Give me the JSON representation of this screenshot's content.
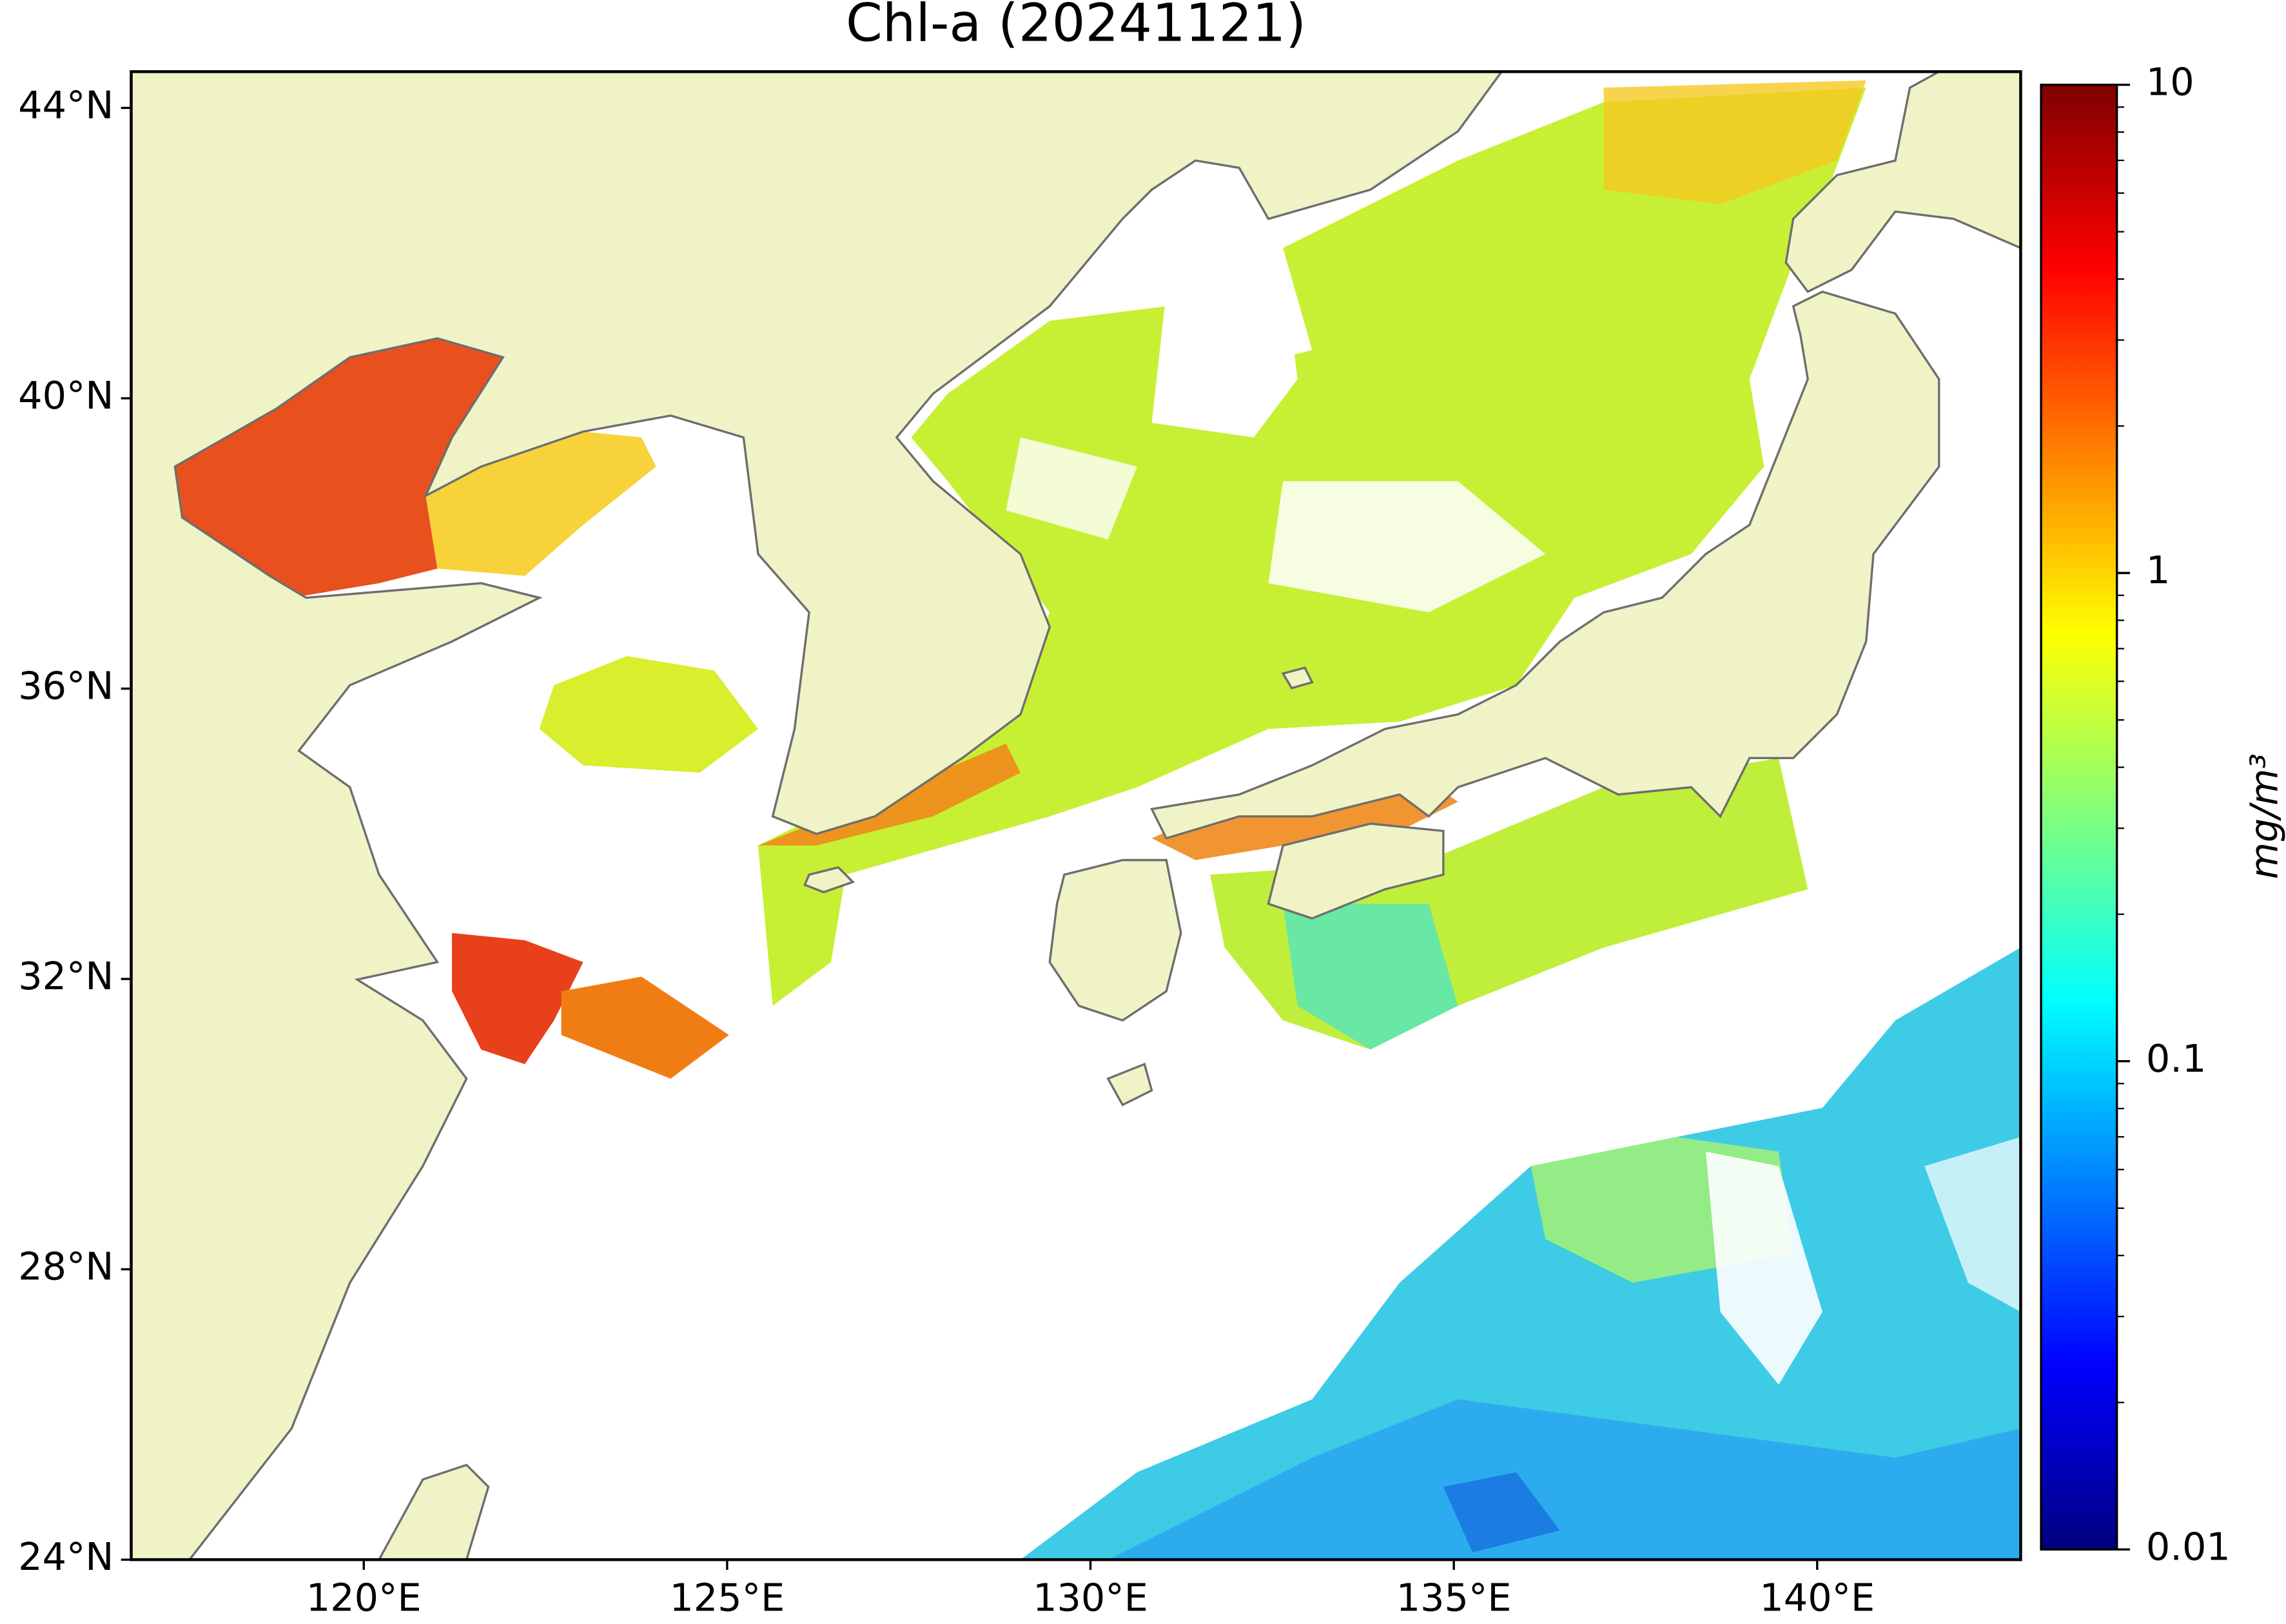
{
  "chart_data": {
    "type": "map",
    "title": "Chl-a (20241121)",
    "xlim": [
      116.8,
      142.8
    ],
    "ylim": [
      24,
      44.5
    ],
    "xticks": [
      {
        "value": 120,
        "label": "120°E"
      },
      {
        "value": 125,
        "label": "125°E"
      },
      {
        "value": 130,
        "label": "130°E"
      },
      {
        "value": 135,
        "label": "135°E"
      },
      {
        "value": 140,
        "label": "140°E"
      }
    ],
    "yticks": [
      {
        "value": 24,
        "label": "24°N"
      },
      {
        "value": 28,
        "label": "28°N"
      },
      {
        "value": 32,
        "label": "32°N"
      },
      {
        "value": 36,
        "label": "36°N"
      },
      {
        "value": 40,
        "label": "40°N"
      },
      {
        "value": 44,
        "label": "44°N"
      }
    ],
    "colorbar": {
      "colormap": "jet",
      "scale": "log",
      "lim": [
        0.01,
        10
      ],
      "ticks": [
        0.01,
        0.1,
        1,
        10
      ],
      "minor_ticks": [
        0.02,
        0.03,
        0.04,
        0.05,
        0.06,
        0.07,
        0.08,
        0.09,
        0.2,
        0.3,
        0.4,
        0.5,
        0.6,
        0.7,
        0.8,
        0.9,
        2,
        3,
        4,
        5,
        6,
        7,
        8,
        9
      ],
      "label": "mg/m³"
    }
  }
}
